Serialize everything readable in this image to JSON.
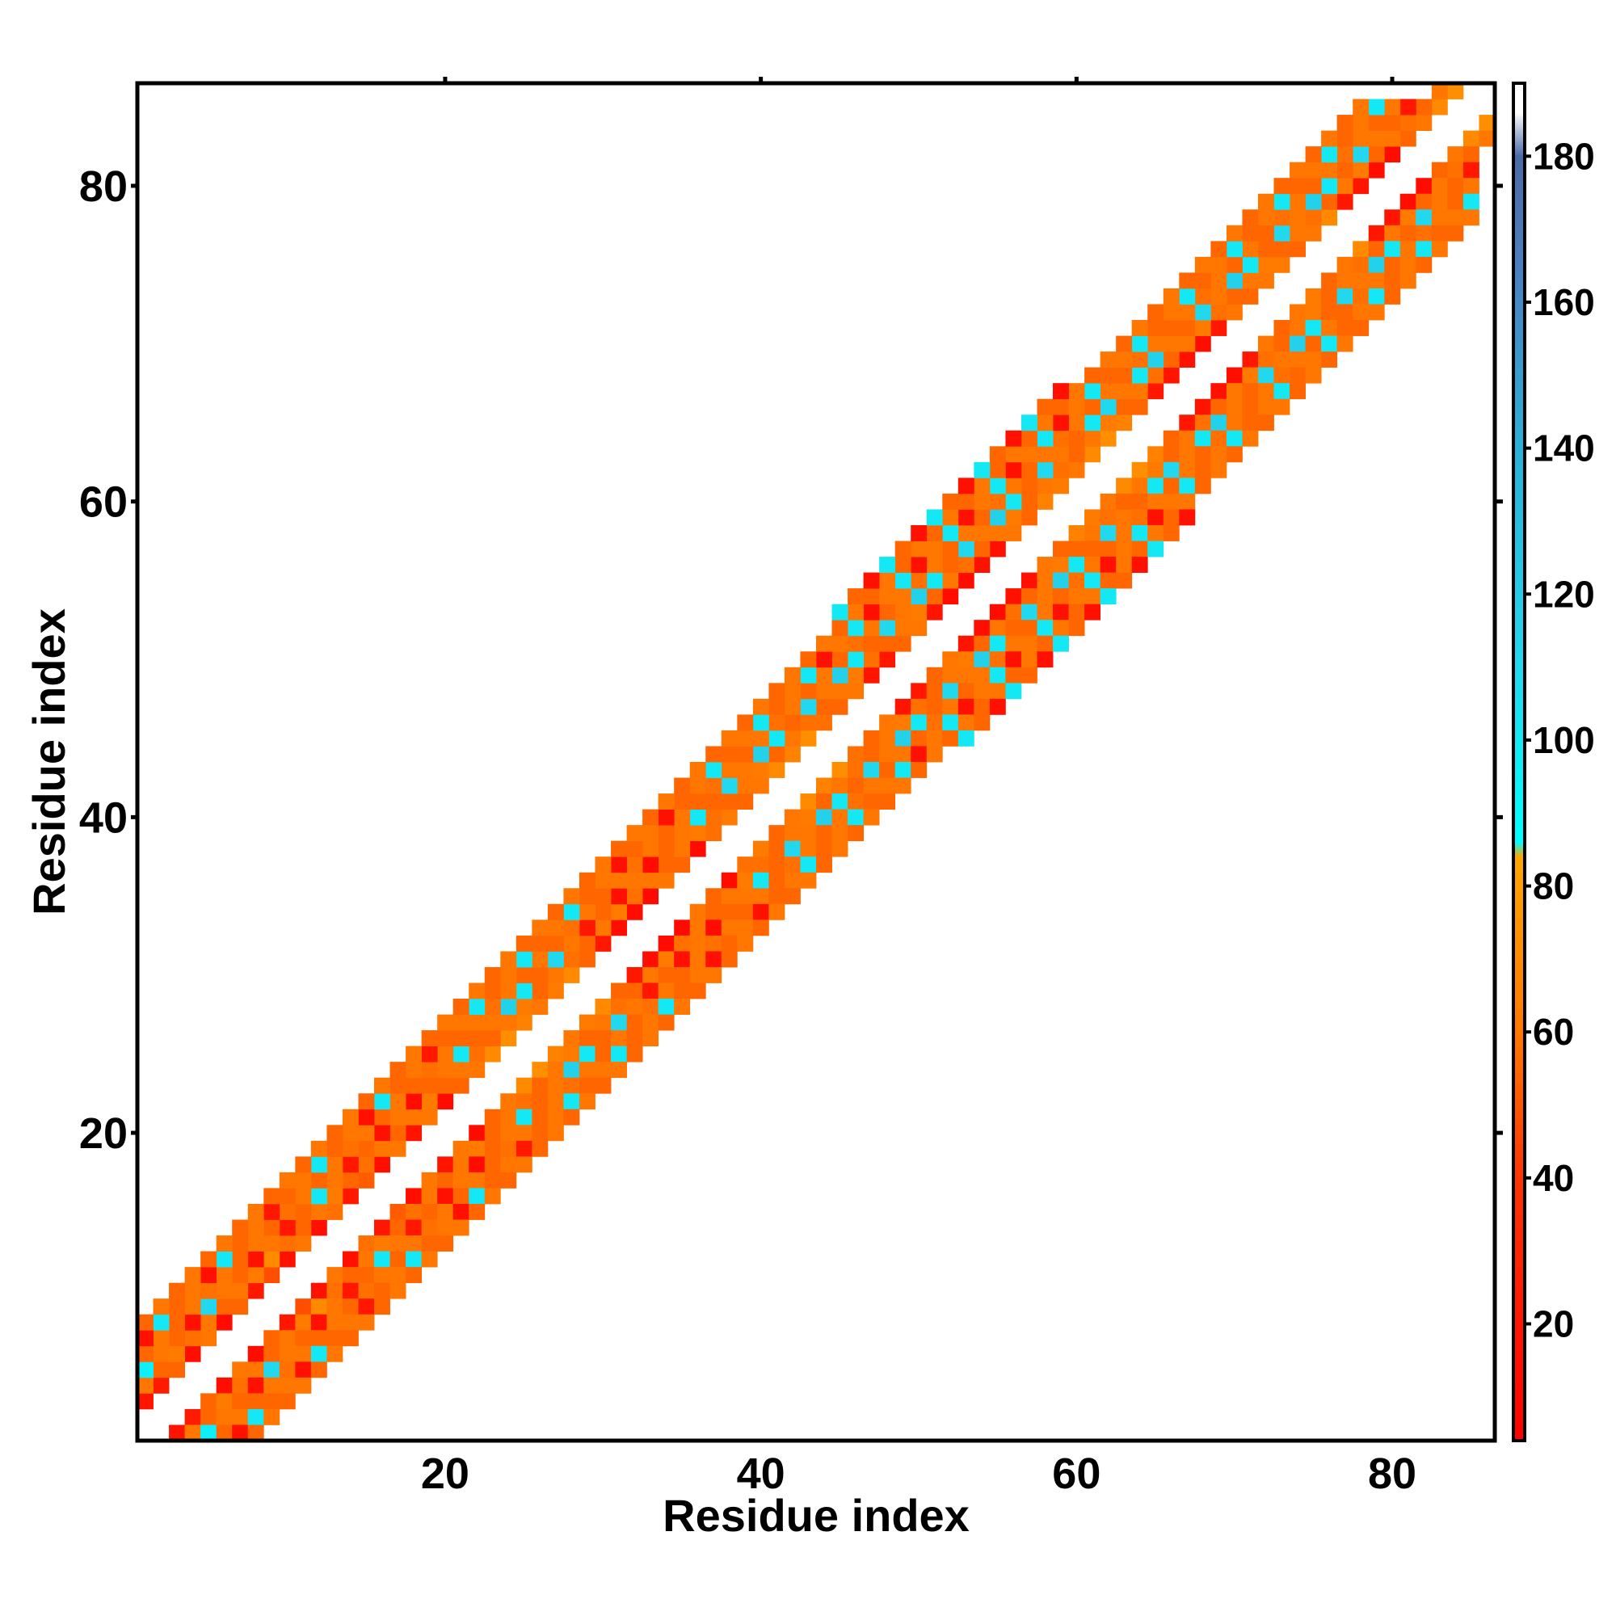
{
  "chart_data": {
    "type": "heatmap",
    "title": "",
    "xlabel": "Residue index",
    "ylabel": "Residue index",
    "xlim": [
      1,
      86
    ],
    "ylim": [
      1,
      86
    ],
    "x_ticks": [
      "20",
      "40",
      "60",
      "80"
    ],
    "y_ticks": [
      "20",
      "40",
      "60",
      "80"
    ],
    "grid": false,
    "colorbar": {
      "position": "right",
      "range": [
        4,
        190
      ],
      "ticks": [
        "20",
        "40",
        "60",
        "80",
        "100",
        "120",
        "140",
        "160",
        "180"
      ],
      "scale": [
        {
          "value": 4,
          "color": "#ff0000"
        },
        {
          "value": 40,
          "color": "#ff3300"
        },
        {
          "value": 60,
          "color": "#ff7700"
        },
        {
          "value": 84,
          "color": "#ffa500"
        },
        {
          "value": 86,
          "color": "#00ffff"
        },
        {
          "value": 110,
          "color": "#22d8ee"
        },
        {
          "value": 140,
          "color": "#2ab0d8"
        },
        {
          "value": 165,
          "color": "#4a7fbf"
        },
        {
          "value": 180,
          "color": "#4c6aa8"
        },
        {
          "value": 186,
          "color": "#ffffff"
        },
        {
          "value": 190,
          "color": "#ffffff"
        }
      ]
    },
    "description_note": "",
    "offsets": [
      {
        "offset": 2,
        "values": [
          18,
          22,
          55,
          14,
          60,
          12,
          55,
          20,
          48,
          16,
          60,
          15,
          58,
          20,
          52,
          14,
          60,
          18,
          60,
          12,
          55,
          60,
          70,
          72,
          65,
          60,
          62,
          70,
          55,
          20,
          14,
          12,
          10,
          60,
          55,
          12,
          58,
          62,
          55,
          60,
          70,
          65,
          72,
          58,
          55,
          60,
          18,
          20,
          55,
          60,
          18,
          14,
          12,
          16,
          15,
          60,
          55,
          65,
          62,
          60,
          70,
          72,
          65,
          55,
          20,
          18,
          16,
          14,
          20,
          60,
          55,
          60,
          62,
          55,
          60,
          70,
          20,
          18,
          14,
          12,
          55,
          60,
          70,
          72
        ]
      },
      {
        "offset": 3,
        "values": [
          60,
          55,
          62,
          58,
          60,
          55,
          60,
          62,
          70,
          58,
          55,
          60,
          62,
          55,
          58,
          60,
          55,
          60,
          62,
          55,
          60,
          58,
          55,
          60,
          62,
          55,
          60,
          58,
          55,
          60,
          62,
          58,
          60,
          55,
          60,
          62,
          58,
          55,
          60,
          62,
          55,
          60,
          58,
          55,
          60,
          62,
          58,
          55,
          60,
          62,
          55,
          60,
          58,
          55,
          60,
          62,
          55,
          60,
          58,
          55,
          60,
          62,
          55,
          60,
          58,
          55,
          60,
          62,
          58,
          55,
          60,
          62,
          55,
          60,
          58,
          55,
          60,
          62,
          55,
          60,
          58,
          55,
          60
        ]
      },
      {
        "offset": 4,
        "values": [
          95,
          60,
          55,
          15,
          110,
          60,
          55,
          15,
          60,
          20,
          55,
          100,
          60,
          20,
          55,
          15,
          60,
          12,
          55,
          60,
          100,
          55,
          60,
          115,
          100,
          55,
          110,
          60,
          20,
          55,
          15,
          60,
          12,
          55,
          60,
          100,
          55,
          110,
          60,
          115,
          100,
          55,
          110,
          60,
          115,
          100,
          55,
          110,
          60,
          115,
          100,
          55,
          110,
          60,
          115,
          100,
          55,
          110,
          60,
          55,
          100,
          110,
          60,
          100,
          115,
          60,
          55,
          110,
          60,
          115,
          100,
          55,
          110,
          60,
          115,
          100,
          55,
          110,
          60,
          55,
          20
        ]
      },
      {
        "offset": 5,
        "values": [
          55,
          60,
          55,
          60,
          58,
          60,
          55,
          60,
          55,
          58,
          60,
          55,
          60,
          58,
          60,
          55,
          60,
          55,
          58,
          60,
          55,
          60,
          58,
          60,
          55,
          60,
          55,
          58,
          60,
          55,
          60,
          58,
          60,
          55,
          60,
          55,
          58,
          60,
          55,
          60,
          58,
          60,
          55,
          60,
          55,
          58,
          60,
          55,
          60,
          58,
          60,
          55,
          60,
          55,
          58,
          60,
          55,
          60,
          58,
          60,
          55,
          60,
          55,
          58,
          60,
          55,
          60,
          58,
          60,
          55,
          60,
          55,
          58,
          60,
          55,
          60,
          58,
          60,
          55,
          60
        ]
      },
      {
        "offset": 6,
        "values": [
          15,
          100,
          55,
          60,
          15,
          100,
          55,
          60,
          20,
          55,
          60,
          100,
          55,
          60,
          15,
          100,
          55,
          60,
          20,
          55,
          60,
          100,
          55,
          60,
          100,
          55,
          60,
          100,
          55,
          60,
          15,
          55,
          60,
          15,
          55,
          60,
          100,
          55,
          60,
          100,
          55,
          60,
          100,
          15,
          60,
          100,
          15,
          60,
          100,
          15,
          60,
          100,
          15,
          60,
          100,
          15,
          60,
          100,
          15,
          60,
          100,
          55,
          60,
          100,
          55,
          60,
          100,
          55,
          60,
          100,
          55,
          60,
          100,
          55,
          60,
          100,
          55,
          60,
          100
        ]
      },
      {
        "offset": 7,
        "values": [
          55,
          60,
          55,
          60,
          55,
          60,
          55,
          60,
          55,
          60,
          55,
          60,
          55,
          60,
          55,
          60,
          55,
          60,
          55,
          60,
          55,
          60,
          55,
          60,
          55,
          60,
          55,
          60,
          55,
          60,
          55,
          60,
          55,
          60,
          55,
          60,
          55,
          60,
          55,
          60,
          55,
          60,
          55,
          60,
          55,
          60,
          55,
          60,
          55,
          60,
          55,
          60,
          55,
          60,
          55,
          60,
          55,
          60,
          55,
          60,
          55,
          60,
          55,
          60,
          55,
          60,
          55,
          60,
          55,
          60,
          55,
          60,
          55,
          60,
          55,
          60,
          55,
          60
        ]
      },
      {
        "offset": 8,
        "values": [
          null,
          null,
          null,
          null,
          null,
          null,
          null,
          null,
          null,
          null,
          null,
          null,
          null,
          null,
          null,
          null,
          null,
          null,
          null,
          null,
          null,
          null,
          null,
          null,
          null,
          null,
          null,
          null,
          null,
          null,
          null,
          null,
          null,
          null,
          null,
          null,
          null,
          null,
          null,
          null,
          null,
          null,
          null,
          null,
          100,
          55,
          15,
          100,
          55,
          15,
          100,
          55,
          15,
          100,
          55,
          15,
          100,
          55,
          15,
          null,
          null,
          null,
          null,
          null,
          null,
          null,
          null,
          null,
          null,
          null,
          null,
          null,
          null,
          null,
          null,
          null,
          null,
          null
        ]
      }
    ]
  }
}
